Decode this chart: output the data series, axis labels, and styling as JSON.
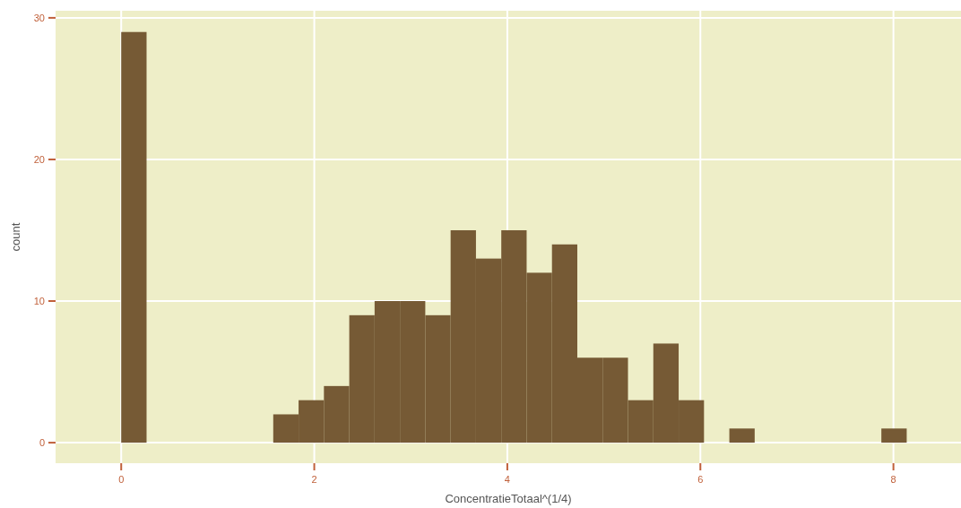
{
  "chart_data": {
    "type": "histogram",
    "xlabel": "ConcentratieTotaal^(1/4)",
    "ylabel": "count",
    "color": "#765a35",
    "bins": [
      0,
      0.2625,
      0.525,
      0.7875,
      1.05,
      1.3125,
      1.575,
      1.8375,
      2.1,
      2.3625,
      2.625,
      2.8875,
      3.15,
      3.4125,
      3.675,
      3.9375,
      4.2,
      4.4625,
      4.725,
      4.9875,
      5.25,
      5.5125,
      5.775,
      6.0375,
      6.3,
      6.5625,
      6.825,
      7.0875,
      7.35,
      7.6125,
      7.875,
      8.1375
    ],
    "values": [
      29,
      0,
      0,
      0,
      0,
      0,
      2,
      3,
      4,
      9,
      10,
      10,
      9,
      15,
      13,
      15,
      12,
      14,
      6,
      6,
      3,
      7,
      3,
      0,
      1,
      0,
      0,
      0,
      0,
      0,
      1
    ],
    "xlim": [
      -0.68,
      8.7
    ],
    "ylim": [
      -1.45,
      30.5
    ],
    "xticks": [
      0,
      2,
      4,
      6,
      8
    ],
    "yticks": [
      0,
      10,
      20,
      30
    ],
    "grid": true
  }
}
